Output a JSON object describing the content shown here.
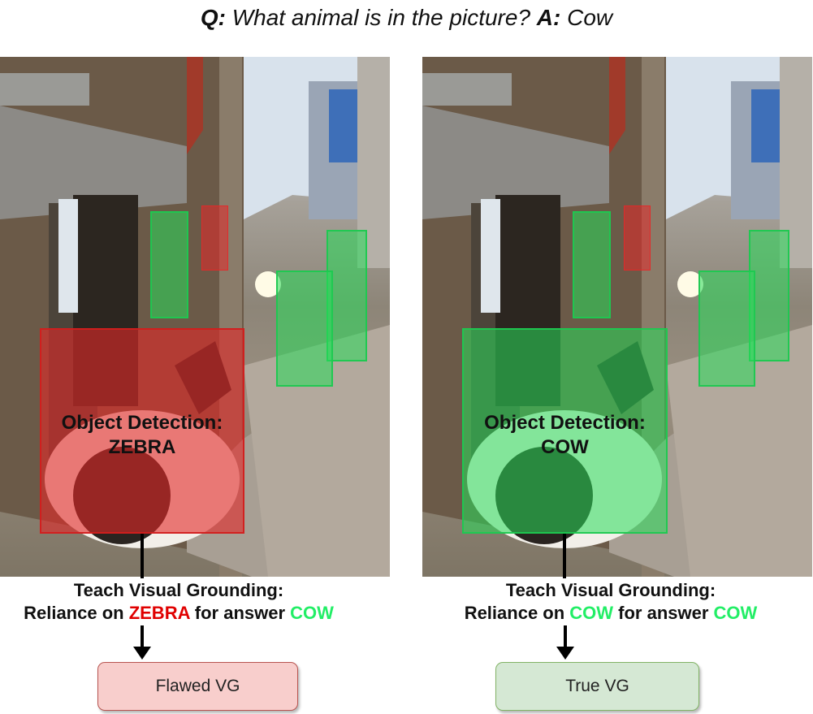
{
  "question": {
    "q_label": "Q:",
    "q_text": "What animal is in the picture?",
    "a_label": "A:",
    "a_text": "Cow"
  },
  "panels": [
    {
      "id": "flawed",
      "box_color": "#e22828",
      "detection_title": "Object Detection:",
      "detection_class": "ZEBRA",
      "teach_line1": "Teach Visual Grounding:",
      "teach_pre": "Reliance on ",
      "teach_object": "ZEBRA",
      "teach_mid": " for answer ",
      "teach_answer": "COW",
      "result_label": "Flawed VG",
      "result_fill": "#f8cecc",
      "result_border": "#b85450"
    },
    {
      "id": "true",
      "box_color": "#28dc5a",
      "detection_title": "Object Detection:",
      "detection_class": "COW",
      "teach_line1": "Teach Visual Grounding:",
      "teach_pre": "Reliance on ",
      "teach_object": "COW",
      "teach_mid": " for answer ",
      "teach_answer": "COW",
      "result_label": "True VG",
      "result_fill": "#d5e8d4",
      "result_border": "#82b366"
    }
  ],
  "colors": {
    "object_red": "#e00000",
    "answer_green": "#22ee66"
  }
}
